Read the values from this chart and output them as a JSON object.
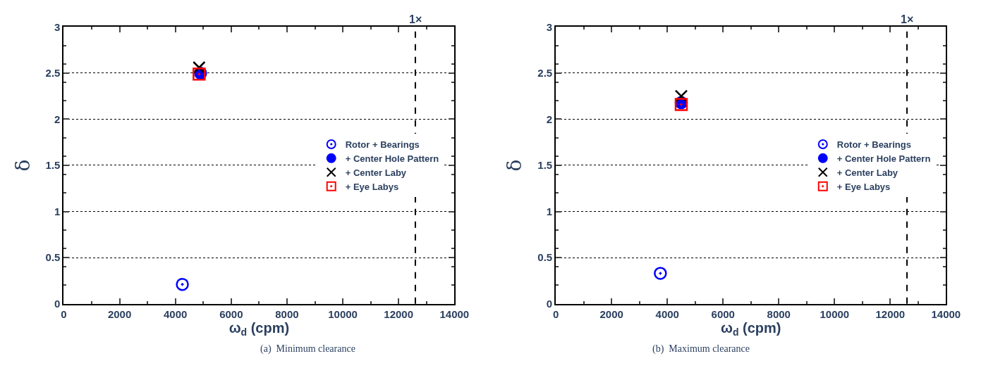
{
  "chart_data": [
    {
      "type": "scatter",
      "xlabel": "ω$_{d}$ (cpm)",
      "ylabel": "δ",
      "xlim": [
        0,
        14000
      ],
      "xticks": [
        0,
        2000,
        4000,
        6000,
        8000,
        10000,
        12000,
        14000
      ],
      "ylim": [
        0,
        3
      ],
      "yticks": [
        0,
        0.5,
        1,
        1.5,
        2,
        2.5,
        3
      ],
      "grid": "y",
      "legend": "right",
      "series": [
        {
          "name": "Rotor + Bearings",
          "color": "#0000ff",
          "marker": "circle-open-dot",
          "x": [
            4250
          ],
          "values": [
            0.21
          ]
        },
        {
          "name": "+ Center Hole Pattern",
          "color": "#0000ff",
          "marker": "circle",
          "x": [
            4900
          ],
          "values": [
            2.5
          ]
        },
        {
          "name": "+ Center Laby",
          "color": "#000000",
          "marker": "cross",
          "x": [
            4850
          ],
          "values": [
            2.56
          ]
        },
        {
          "name": "+ Eye Labys",
          "color": "#ff0000",
          "marker": "square-open-dot",
          "x": [
            4850
          ],
          "values": [
            2.49
          ]
        }
      ],
      "ref_lines": [
        {
          "axis": "x",
          "value": 12600,
          "label": "1×",
          "color": "#000000",
          "line_style": "dashed"
        }
      ],
      "annotations": [
        "(a)  Minimum clearance"
      ]
    },
    {
      "type": "scatter",
      "xlabel": "ω$_{d}$ (cpm)",
      "ylabel": "δ",
      "xlim": [
        0,
        14000
      ],
      "xticks": [
        0,
        2000,
        4000,
        6000,
        8000,
        10000,
        12000,
        14000
      ],
      "ylim": [
        0,
        3
      ],
      "yticks": [
        0,
        0.5,
        1,
        1.5,
        2,
        2.5,
        3
      ],
      "grid": "y",
      "legend": "right",
      "series": [
        {
          "name": "Rotor + Bearings",
          "color": "#0000ff",
          "marker": "circle-open-dot",
          "x": [
            3750
          ],
          "values": [
            0.33
          ]
        },
        {
          "name": "+ Center Hole Pattern",
          "color": "#0000ff",
          "marker": "circle",
          "x": [
            4500
          ],
          "values": [
            2.18
          ]
        },
        {
          "name": "+ Center Laby",
          "color": "#000000",
          "marker": "cross",
          "x": [
            4500
          ],
          "values": [
            2.25
          ]
        },
        {
          "name": "+ Eye Labys",
          "color": "#ff0000",
          "marker": "square-open-dot",
          "x": [
            4500
          ],
          "values": [
            2.16
          ]
        }
      ],
      "ref_lines": [
        {
          "axis": "x",
          "value": 12600,
          "label": "1×",
          "color": "#000000",
          "line_style": "dashed"
        }
      ],
      "annotations": [
        "(b)  Maximum clearance"
      ]
    }
  ]
}
